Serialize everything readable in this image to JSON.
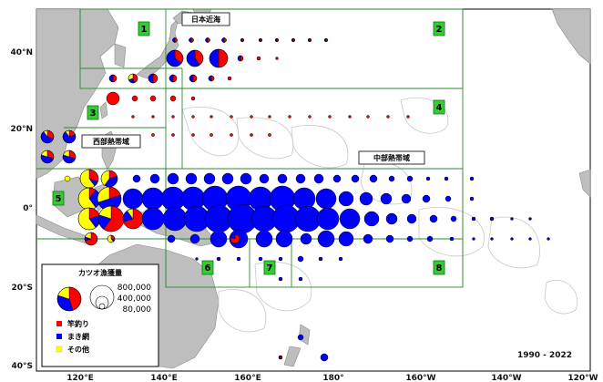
{
  "map": {
    "year_range": "1990 - 2022",
    "lat_labels": [
      "40°N",
      "20°N",
      "0°",
      "20°S",
      "40°S"
    ],
    "lon_labels": [
      "120°E",
      "140°E",
      "160°E",
      "180°",
      "160°W",
      "140°W",
      "120°W"
    ],
    "region_labels": {
      "japan": "日本近海",
      "west": "西部熱帯域",
      "central": "中部熱帯域"
    },
    "area_numbers": [
      "1",
      "2",
      "3",
      "4",
      "5",
      "6",
      "7",
      "8"
    ],
    "legend": {
      "title": "カツオ漁獲量",
      "sizes": [
        "800,000",
        "400,000",
        "80,000"
      ],
      "items": [
        {
          "label": "竿釣り",
          "color": "#ff0000"
        },
        {
          "label": "まき網",
          "color": "#0000ff"
        },
        {
          "label": "その他",
          "color": "#ffff00"
        }
      ]
    },
    "colors": {
      "pole_and_line": "#ff0000",
      "purse_seine": "#0000ff",
      "other": "#ffff00",
      "land": "#bebebe",
      "area_line": "#2e8b2e",
      "area_box": "#33cc33"
    }
  }
}
